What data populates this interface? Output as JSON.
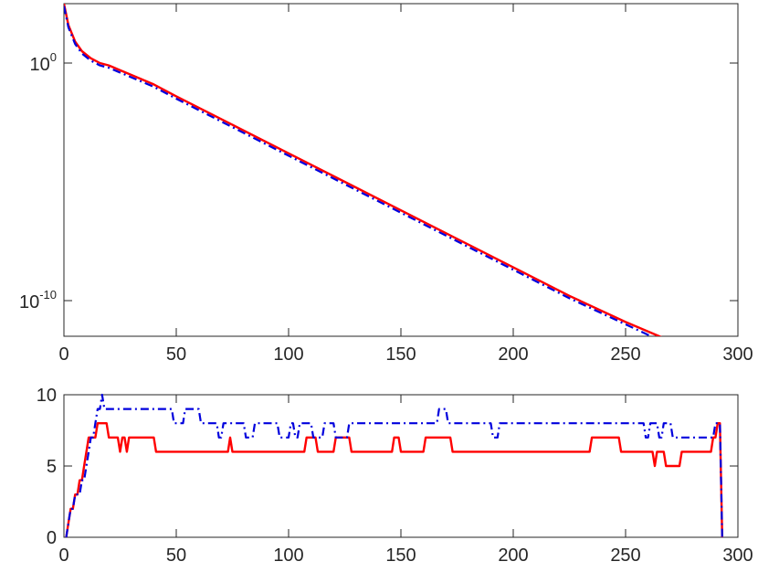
{
  "chart_data": [
    {
      "type": "line",
      "yscale": "log",
      "xlim": [
        0,
        300
      ],
      "ylim_exp": [
        -11.5,
        2.5
      ],
      "x_ticks": [
        0,
        50,
        100,
        150,
        200,
        250,
        300
      ],
      "x_tick_labels": [
        "0",
        "50",
        "100",
        "150",
        "200",
        "250",
        "300"
      ],
      "y_ticks": [
        0,
        -10
      ],
      "y_tick_labels": [
        {
          "base": "10",
          "exp": "0"
        },
        {
          "base": "10",
          "exp": "-10"
        }
      ],
      "grid": false,
      "series": [
        {
          "color": "#ff0000",
          "style": "solid",
          "x": [
            0,
            2,
            5,
            8,
            12,
            16,
            20,
            30,
            40,
            50,
            75,
            100,
            125,
            150,
            175,
            200,
            225,
            250,
            275,
            285,
            290,
            295,
            300
          ],
          "log10_y": [
            2.5,
            1.6,
            0.9,
            0.5,
            0.2,
            0.0,
            -0.1,
            -0.5,
            -0.9,
            -1.4,
            -2.6,
            -3.8,
            -5.0,
            -6.2,
            -7.4,
            -8.6,
            -9.8,
            -10.9,
            -11.9,
            -12.4,
            -12.8,
            -13.1,
            -13.3
          ]
        },
        {
          "color": "#0000dd",
          "style": "dashdot",
          "x": [
            0,
            2,
            5,
            8,
            12,
            16,
            20,
            30,
            40,
            50,
            75,
            100,
            125,
            150,
            175,
            200,
            225,
            250,
            275,
            285,
            292
          ],
          "log10_y": [
            2.4,
            1.5,
            0.8,
            0.4,
            0.1,
            -0.1,
            -0.2,
            -0.6,
            -1.0,
            -1.5,
            -2.7,
            -3.9,
            -5.1,
            -6.3,
            -7.5,
            -8.7,
            -9.9,
            -11.0,
            -12.1,
            -12.6,
            -13.0
          ]
        }
      ]
    },
    {
      "type": "line",
      "xlim": [
        0,
        300
      ],
      "ylim": [
        0,
        10
      ],
      "x_ticks": [
        0,
        50,
        100,
        150,
        200,
        250,
        300
      ],
      "x_tick_labels": [
        "0",
        "50",
        "100",
        "150",
        "200",
        "250",
        "300"
      ],
      "y_ticks": [
        0,
        5,
        10
      ],
      "y_tick_labels": [
        "0",
        "5",
        "10"
      ],
      "grid": false,
      "series": [
        {
          "color": "#ff0000",
          "style": "solid",
          "x": [
            1,
            2,
            3,
            4,
            5,
            6,
            7,
            8,
            9,
            10,
            11,
            12,
            13,
            14,
            15,
            16,
            17,
            18,
            19,
            20,
            24,
            25,
            26,
            27,
            28,
            29,
            30,
            31,
            32,
            40,
            41,
            42,
            73,
            74,
            75,
            76,
            107,
            108,
            112,
            113,
            114,
            115,
            120,
            121,
            127,
            128,
            146,
            147,
            149,
            150,
            160,
            161,
            172,
            173,
            234,
            235,
            247,
            248,
            262,
            263,
            264,
            265,
            267,
            268,
            274,
            275,
            282,
            283,
            288,
            289,
            290,
            291,
            292,
            293
          ],
          "y": [
            0,
            1,
            2,
            2,
            3,
            3,
            4,
            4,
            5,
            6,
            7,
            7,
            7,
            7,
            8,
            8,
            8,
            8,
            8,
            7,
            7,
            6,
            7,
            7,
            6,
            7,
            7,
            7,
            7,
            7,
            6,
            6,
            6,
            7,
            6,
            6,
            6,
            7,
            7,
            6,
            6,
            6,
            6,
            7,
            7,
            6,
            6,
            7,
            7,
            6,
            6,
            7,
            7,
            6,
            6,
            7,
            7,
            6,
            6,
            5,
            6,
            6,
            6,
            5,
            5,
            6,
            6,
            6,
            6,
            7,
            7,
            8,
            8,
            0
          ]
        },
        {
          "color": "#0000dd",
          "style": "dashdot",
          "x": [
            1,
            2,
            3,
            4,
            5,
            6,
            7,
            8,
            9,
            10,
            11,
            12,
            13,
            14,
            15,
            16,
            17,
            18,
            19,
            20,
            48,
            49,
            53,
            54,
            55,
            56,
            60,
            61,
            68,
            69,
            70,
            71,
            72,
            73,
            74,
            75,
            80,
            81,
            84,
            85,
            88,
            89,
            90,
            91,
            95,
            96,
            100,
            101,
            102,
            103,
            104,
            105,
            110,
            111,
            115,
            116,
            120,
            121,
            126,
            127,
            142,
            143,
            145,
            146,
            150,
            151,
            160,
            161,
            166,
            167,
            170,
            171,
            175,
            176,
            190,
            191,
            193,
            194,
            205,
            206,
            215,
            216,
            230,
            231,
            241,
            242,
            250,
            251,
            258,
            259,
            260,
            261,
            264,
            265,
            266,
            267,
            270,
            271,
            272,
            273,
            275,
            276,
            284,
            285,
            289,
            290,
            291,
            292,
            293
          ],
          "y": [
            0,
            1,
            2,
            2,
            3,
            3,
            3,
            4,
            4,
            5,
            6,
            7,
            7,
            8,
            9,
            9,
            10,
            9,
            9,
            9,
            9,
            8,
            8,
            9,
            9,
            9,
            9,
            8,
            8,
            7,
            7,
            8,
            8,
            8,
            8,
            8,
            8,
            7,
            7,
            8,
            8,
            8,
            8,
            8,
            8,
            7,
            7,
            8,
            8,
            7,
            7,
            8,
            8,
            7,
            7,
            8,
            8,
            7,
            7,
            8,
            8,
            8,
            8,
            8,
            8,
            8,
            8,
            8,
            8,
            9,
            9,
            8,
            8,
            8,
            8,
            7,
            7,
            8,
            8,
            8,
            8,
            8,
            8,
            8,
            8,
            8,
            8,
            8,
            8,
            7,
            7,
            8,
            8,
            7,
            7,
            8,
            8,
            7,
            7,
            7,
            7,
            7,
            7,
            7,
            7,
            8,
            8,
            8,
            0
          ]
        }
      ]
    }
  ]
}
